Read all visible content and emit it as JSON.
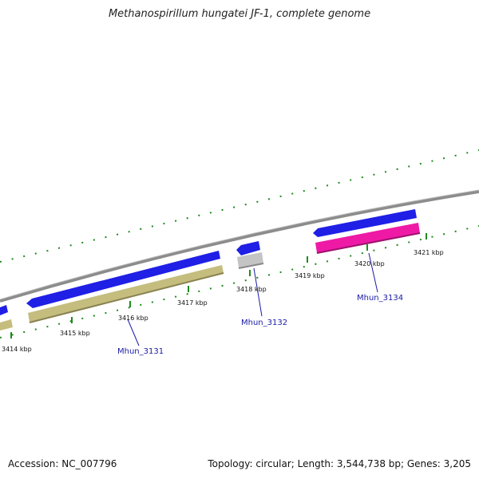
{
  "title": "Methanospirillum hungatei JF-1, complete genome",
  "footer": {
    "accession": "Accession: NC_007796",
    "summary": "Topology: circular; Length: 3,544,738 bp; Genes: 3,205"
  },
  "ticks": [
    "3414 kbp",
    "3415 kbp",
    "3416 kbp",
    "3417 kbp",
    "3418 kbp",
    "3419 kbp",
    "3420 kbp",
    "3421 kbp"
  ],
  "genes": [
    "Mhun_3131",
    "Mhun_3132",
    "Mhun_3134"
  ],
  "colors": {
    "backbone": "#8c8c8c",
    "cds": "#1f1fe6",
    "gene_khaki": "#c4bd7e",
    "gene_gray": "#c4c4c4",
    "gene_pink": "#ee1aa6",
    "tick_green": "#1f8a1f",
    "label_blue": "#1a1aa6"
  }
}
